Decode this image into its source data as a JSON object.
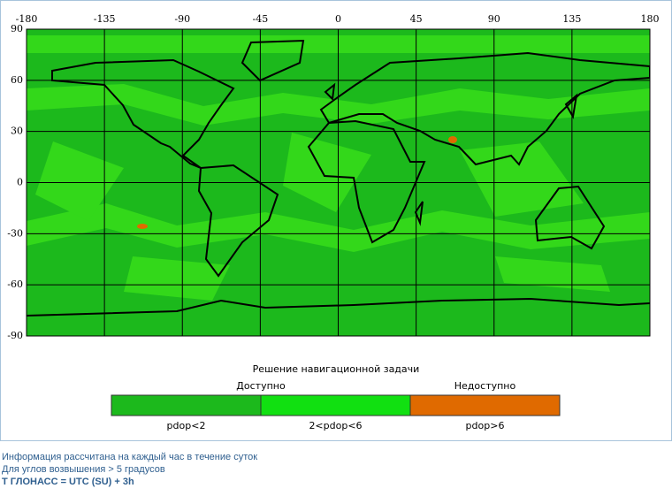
{
  "map": {
    "xlim": [
      -180,
      180
    ],
    "ylim": [
      -90,
      90
    ],
    "xticks": [
      -180,
      -135,
      -90,
      -45,
      0,
      45,
      90,
      135,
      180
    ],
    "yticks": [
      90,
      60,
      30,
      0,
      -30,
      -60,
      -90
    ]
  },
  "legend": {
    "title": "Решение навигационной задачи",
    "groups": [
      "Доступно",
      "Недоступно"
    ],
    "items": [
      {
        "label": "pdop<2",
        "color": "#1cb91c"
      },
      {
        "label": "2<pdop<6",
        "color": "#11e011"
      },
      {
        "label": "pdop>6",
        "color": "#e06a00"
      }
    ]
  },
  "footer": [
    "Информация рассчитана на каждый час в течение суток",
    "Для углов возвышения > 5 градусов",
    "Т ГЛОНАСС = UTC (SU) + 3h"
  ]
}
